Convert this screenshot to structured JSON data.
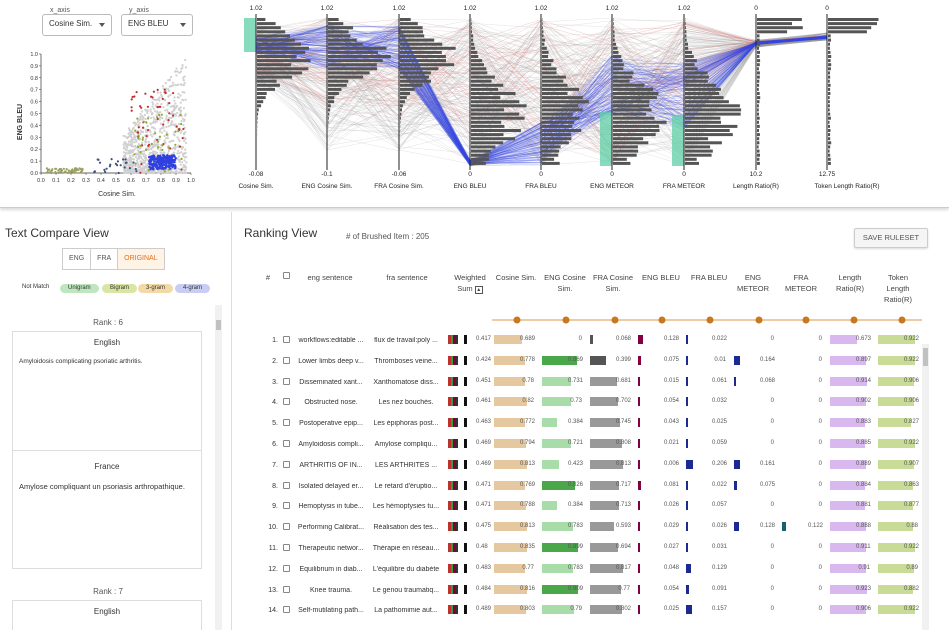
{
  "scatter": {
    "x_axis_legend": "x_axis",
    "x_axis_value": "Cosine Sim.",
    "y_axis_legend": "y_axis",
    "y_axis_value": "ENG BLEU",
    "xlabel": "Cosine Sim.",
    "ylabel": "ENG BLEU",
    "x_ticks": [
      "0.0",
      "0.1",
      "0.2",
      "0.3",
      "0.4",
      "0.5",
      "0.6",
      "0.7",
      "0.8",
      "0.9",
      "1.0"
    ],
    "y_ticks": [
      "1.0",
      "0.9",
      "0.8",
      "0.7",
      "0.6",
      "0.5",
      "0.4",
      "0.3",
      "0.2",
      "0.1",
      "0.0"
    ]
  },
  "parallel": {
    "axes": [
      {
        "label": "Cosine Sim.",
        "top": "1.02",
        "bottom": "-0.08"
      },
      {
        "label": "ENG Cosine Sim.",
        "top": "1.02",
        "bottom": "-0.1"
      },
      {
        "label": "FRA Cosine Sim.",
        "top": "1.02",
        "bottom": "-0.06"
      },
      {
        "label": "ENG BLEU",
        "top": "1.02",
        "bottom": "0"
      },
      {
        "label": "FRA BLEU",
        "top": "1.02",
        "bottom": "0"
      },
      {
        "label": "ENG METEOR",
        "top": "1.02",
        "bottom": "0"
      },
      {
        "label": "FRA METEOR",
        "top": "1.02",
        "bottom": "0"
      },
      {
        "label": "Length Ratio(R)",
        "top": "0",
        "bottom": "10.2"
      },
      {
        "label": "Token Length Ratio(R)",
        "top": "0",
        "bottom": "12.75"
      }
    ]
  },
  "text_compare": {
    "title": "Text Compare View",
    "tabs": [
      "ENG",
      "FRA",
      "ORIGINAL"
    ],
    "not_match": "Not Match",
    "ngrams": [
      {
        "label": "Unigram",
        "color": "#bfe6bf"
      },
      {
        "label": "Bigram",
        "color": "#d9e6a3"
      },
      {
        "label": "3-gram",
        "color": "#f2d9a6"
      },
      {
        "label": "4-gram",
        "color": "#c8cdf2"
      }
    ],
    "rank1": "Rank : 6",
    "card1_head": "English",
    "card1_text": "Amyloidosis complicating psoriatic arthritis.",
    "card2_head": "France",
    "card2_text": "Amylose compliquant un psoriasis arthropathique.",
    "rank2": "Rank : 7",
    "card3_head": "English"
  },
  "ranking": {
    "title": "Ranking View",
    "brushed": "# of Brushed Item : 205",
    "save_label": "SAVE RULESET",
    "headers": [
      "#",
      "eng sentence",
      "fra sentence",
      "Weighted Sum",
      "Cosine Sim.",
      "ENG Cosine Sim.",
      "FRA Cosine Sim.",
      "ENG BLEU",
      "FRA BLEU",
      "ENG METEOR",
      "FRA METEOR",
      "Length Ratio(R)",
      "Token Length Ratio(R)"
    ],
    "rows": [
      {
        "n": "1.",
        "eng": "workflows:editable ...",
        "fra": "flux de travail:poly ...",
        "ws": "0.417",
        "cos": "0.689",
        "ecos": "0",
        "fcos": "0.068",
        "ebleu": "0.128",
        "fbleu": "0.022",
        "emet": "0",
        "fmet": "0",
        "lr": "0.673",
        "tlr": "0.922"
      },
      {
        "n": "2.",
        "eng": "Lower limbs deep v...",
        "fra": "Thromboses veine...",
        "ws": "0.424",
        "cos": "0.778",
        "ecos": "0.869",
        "fcos": "0.399",
        "ebleu": "0.075",
        "fbleu": "0.01",
        "emet": "0.164",
        "fmet": "0",
        "lr": "0.897",
        "tlr": "0.922"
      },
      {
        "n": "3.",
        "eng": "Disseminated xant...",
        "fra": "Xanthomatose diss...",
        "ws": "0.451",
        "cos": "0.78",
        "ecos": "0.731",
        "fcos": "0.681",
        "ebleu": "0.015",
        "fbleu": "0.061",
        "emet": "0.068",
        "fmet": "0",
        "lr": "0.914",
        "tlr": "0.906"
      },
      {
        "n": "4.",
        "eng": "Obstructed nose.",
        "fra": "Les nez bouchés.",
        "ws": "0.461",
        "cos": "0.82",
        "ecos": "0.73",
        "fcos": "0.702",
        "ebleu": "0.054",
        "fbleu": "0.032",
        "emet": "0",
        "fmet": "0",
        "lr": "0.902",
        "tlr": "0.906"
      },
      {
        "n": "5.",
        "eng": "Postoperative epip...",
        "fra": "Les épiphoras post...",
        "ws": "0.463",
        "cos": "0.772",
        "ecos": "0.384",
        "fcos": "0.745",
        "ebleu": "0.043",
        "fbleu": "0.025",
        "emet": "0",
        "fmet": "0",
        "lr": "0.883",
        "tlr": "0.827"
      },
      {
        "n": "6.",
        "eng": "Amyloidosis compli...",
        "fra": "Amylose compliqu...",
        "ws": "0.469",
        "cos": "0.794",
        "ecos": "0.721",
        "fcos": "0.808",
        "ebleu": "0.021",
        "fbleu": "0.059",
        "emet": "0",
        "fmet": "0",
        "lr": "0.885",
        "tlr": "0.922"
      },
      {
        "n": "7.",
        "eng": "ARTHRITIS OF IN...",
        "fra": "LES ARTHRITES ...",
        "ws": "0.469",
        "cos": "0.813",
        "ecos": "0.423",
        "fcos": "0.813",
        "ebleu": "0.006",
        "fbleu": "0.206",
        "emet": "0.161",
        "fmet": "0",
        "lr": "0.889",
        "tlr": "0.907"
      },
      {
        "n": "8.",
        "eng": "Isolated delayed er...",
        "fra": "Le retard d'éruptio...",
        "ws": "0.471",
        "cos": "0.769",
        "ecos": "0.826",
        "fcos": "0.717",
        "ebleu": "0.081",
        "fbleu": "0.022",
        "emet": "0.075",
        "fmet": "0",
        "lr": "0.884",
        "tlr": "0.863"
      },
      {
        "n": "9.",
        "eng": "Hemoptysis in tube...",
        "fra": "Les hémoptysies tu...",
        "ws": "0.471",
        "cos": "0.788",
        "ecos": "0.384",
        "fcos": "0.713",
        "ebleu": "0.026",
        "fbleu": "0.057",
        "emet": "0",
        "fmet": "0",
        "lr": "0.881",
        "tlr": "0.877"
      },
      {
        "n": "10.",
        "eng": "Performing Calibrat...",
        "fra": "Réalisation des tes...",
        "ws": "0.475",
        "cos": "0.813",
        "ecos": "0.783",
        "fcos": "0.593",
        "ebleu": "0.029",
        "fbleu": "0.026",
        "emet": "0.128",
        "fmet": "0.122",
        "lr": "0.888",
        "tlr": "0.88"
      },
      {
        "n": "11.",
        "eng": "Therapeutic networ...",
        "fra": "Thérapie en réseau...",
        "ws": "0.48",
        "cos": "0.835",
        "ecos": "0.899",
        "fcos": "0.694",
        "ebleu": "0.027",
        "fbleu": "0.031",
        "emet": "0",
        "fmet": "0",
        "lr": "0.911",
        "tlr": "0.922"
      },
      {
        "n": "12.",
        "eng": "Equilibrium in diab...",
        "fra": "L'équilibre du diabète",
        "ws": "0.483",
        "cos": "0.77",
        "ecos": "0.783",
        "fcos": "0.817",
        "ebleu": "0.048",
        "fbleu": "0.129",
        "emet": "0",
        "fmet": "0",
        "lr": "0.91",
        "tlr": "0.89"
      },
      {
        "n": "13.",
        "eng": "Knee trauma.",
        "fra": "Le genou traumatiq...",
        "ws": "0.484",
        "cos": "0.816",
        "ecos": "0.909",
        "fcos": "0.77",
        "ebleu": "0.054",
        "fbleu": "0.091",
        "emet": "0",
        "fmet": "0",
        "lr": "0.923",
        "tlr": "0.882"
      },
      {
        "n": "14.",
        "eng": "Self-mutilating path...",
        "fra": "La pathomimie aut...",
        "ws": "0.489",
        "cos": "0.803",
        "ecos": "0.79",
        "fcos": "0.802",
        "ebleu": "0.025",
        "fbleu": "0.157",
        "emet": "0",
        "fmet": "0",
        "lr": "0.906",
        "tlr": "0.922"
      }
    ]
  }
}
